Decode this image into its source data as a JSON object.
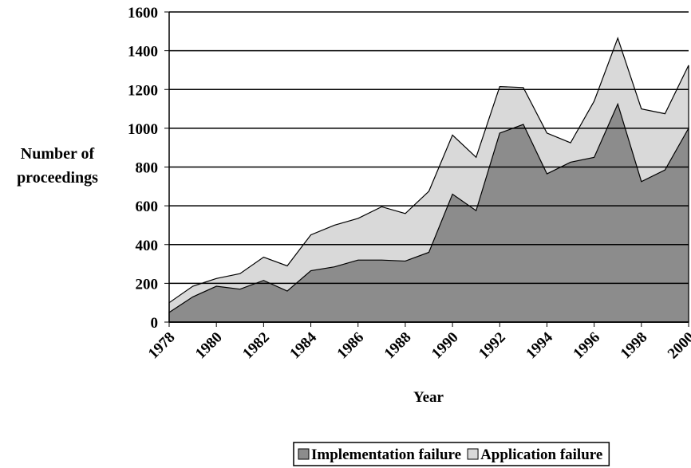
{
  "chart_data": {
    "type": "stacked_area",
    "ylabel": "Number of proceedings",
    "xlabel": "Year",
    "x": [
      1978,
      1979,
      1980,
      1981,
      1982,
      1983,
      1984,
      1985,
      1986,
      1987,
      1988,
      1989,
      1990,
      1991,
      1992,
      1993,
      1994,
      1995,
      1996,
      1997,
      1998,
      1999,
      2000
    ],
    "xlim": [
      1978,
      2000
    ],
    "xticks": [
      1978,
      1980,
      1982,
      1984,
      1986,
      1988,
      1990,
      1992,
      1994,
      1996,
      1998,
      2000
    ],
    "ylim": [
      0,
      1600
    ],
    "yticks": [
      0,
      200,
      400,
      600,
      800,
      1000,
      1200,
      1400,
      1600
    ],
    "grid": true,
    "legend": "bottom",
    "series": [
      {
        "name": "Implementation failure",
        "color": "#8c8c8c",
        "values": [
          50,
          130,
          185,
          170,
          215,
          160,
          265,
          285,
          320,
          320,
          315,
          360,
          660,
          575,
          975,
          1020,
          765,
          825,
          850,
          1125,
          725,
          785,
          1000
        ]
      },
      {
        "name": "Application failure",
        "color": "#d9d9d9",
        "values": [
          50,
          55,
          40,
          80,
          120,
          130,
          185,
          215,
          215,
          275,
          245,
          315,
          305,
          275,
          240,
          190,
          210,
          100,
          290,
          340,
          375,
          290,
          325
        ]
      }
    ]
  }
}
